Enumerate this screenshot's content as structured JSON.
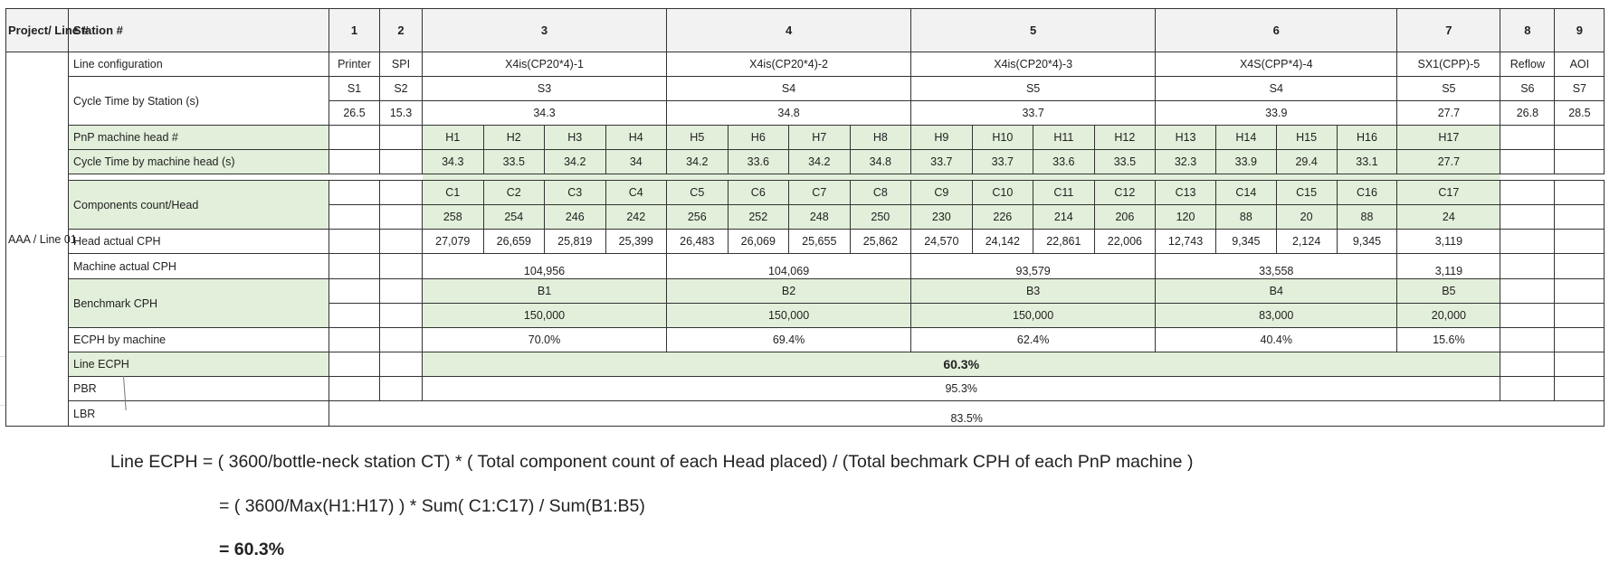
{
  "header": {
    "project": "Project/ Line #",
    "station": "Station #",
    "stations": [
      "1",
      "2",
      "3",
      "4",
      "5",
      "6",
      "7",
      "8",
      "9"
    ]
  },
  "project_line": "AAA / Line 01",
  "rows": {
    "line_config": {
      "label": "Line configuration",
      "values": [
        "Printer",
        "SPI",
        "X4is(CP20*4)-1",
        "X4is(CP20*4)-2",
        "X4is(CP20*4)-3",
        "X4S(CPP*4)-4",
        "SX1(CPP)-5",
        "Reflow",
        "AOI"
      ]
    },
    "ct_station": {
      "label": "Cycle Time by Station (s)",
      "ids": [
        "S1",
        "S2",
        "S3",
        "S4",
        "S5",
        "S4",
        "S5",
        "S6",
        "S7"
      ],
      "values": [
        "26.5",
        "15.3",
        "34.3",
        "34.8",
        "33.7",
        "33.9",
        "27.7",
        "26.8",
        "28.5"
      ]
    },
    "pnp_head": {
      "label": "PnP machine head #",
      "values": [
        "H1",
        "H2",
        "H3",
        "H4",
        "H5",
        "H6",
        "H7",
        "H8",
        "H9",
        "H10",
        "H11",
        "H12",
        "H13",
        "H14",
        "H15",
        "H16",
        "H17"
      ]
    },
    "ct_head": {
      "label": "Cycle Time by machine head (s)",
      "values": [
        "34.3",
        "33.5",
        "34.2",
        "34",
        "34.2",
        "33.6",
        "34.2",
        "34.8",
        "33.7",
        "33.7",
        "33.6",
        "33.5",
        "32.3",
        "33.9",
        "29.4",
        "33.1",
        "27.7"
      ]
    },
    "components": {
      "label": "Components count/Head",
      "ids": [
        "C1",
        "C2",
        "C3",
        "C4",
        "C5",
        "C6",
        "C7",
        "C8",
        "C9",
        "C10",
        "C11",
        "C12",
        "C13",
        "C14",
        "C15",
        "C16",
        "C17"
      ],
      "values": [
        "258",
        "254",
        "246",
        "242",
        "256",
        "252",
        "248",
        "250",
        "230",
        "226",
        "214",
        "206",
        "120",
        "88",
        "20",
        "88",
        "24"
      ]
    },
    "head_cph": {
      "label": "Head actual CPH",
      "values": [
        "27,079",
        "26,659",
        "25,819",
        "25,399",
        "26,483",
        "26,069",
        "25,655",
        "25,862",
        "24,570",
        "24,142",
        "22,861",
        "22,006",
        "12,743",
        "9,345",
        "2,124",
        "9,345",
        "3,119"
      ]
    },
    "machine_cph": {
      "label": "Machine actual CPH",
      "values": [
        "104,956",
        "104,069",
        "93,579",
        "33,558",
        "3,119"
      ]
    },
    "benchmark": {
      "label": "Benchmark CPH",
      "ids": [
        "B1",
        "B2",
        "B3",
        "B4",
        "B5"
      ],
      "values": [
        "150,000",
        "150,000",
        "150,000",
        "83,000",
        "20,000"
      ]
    },
    "ecph_machine": {
      "label": "ECPH by machine",
      "values": [
        "70.0%",
        "69.4%",
        "62.4%",
        "40.4%",
        "15.6%"
      ]
    },
    "line_ecph": {
      "label": "Line ECPH",
      "value": "60.3%"
    },
    "pbr": {
      "label": "PBR",
      "value": "95.3%"
    },
    "lbr": {
      "label": "LBR",
      "value": "83.5%"
    }
  },
  "formula": {
    "line1": "Line ECPH = ( 3600/bottle-neck station CT) * ( Total component count of each Head placed) / (Total bechmark CPH of each PnP machine )",
    "line2": "= ( 3600/Max(H1:H17) ) * Sum( C1:C17) / Sum(B1:B5)",
    "line3": "=  60.3%"
  },
  "colors": {
    "highlight_green": "#e2efda",
    "header_gray": "#f2f2f2",
    "border": "#333333"
  }
}
